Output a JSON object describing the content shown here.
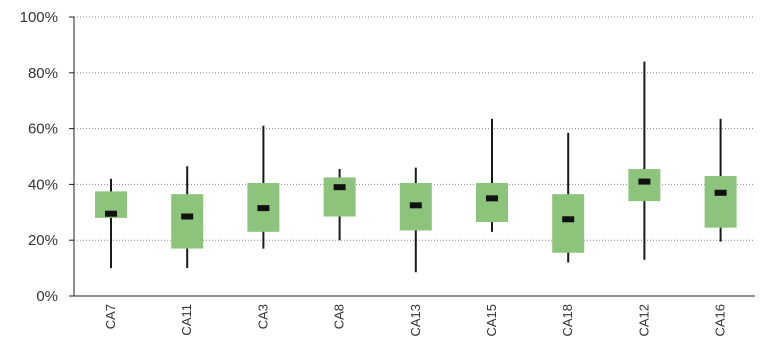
{
  "chart_data": {
    "type": "box",
    "title": "",
    "xlabel": "",
    "ylabel": "",
    "ylim": [
      0,
      100
    ],
    "y_ticks": [
      0,
      20,
      40,
      60,
      80,
      100
    ],
    "y_tick_labels": [
      "0%",
      "20%",
      "40%",
      "60%",
      "80%",
      "100%"
    ],
    "grid": "horizontal dotted",
    "colors": {
      "box": "#8cc47c",
      "whisker": "#1a1a1a",
      "median": "#111111",
      "grid": "#888888"
    },
    "categories": [
      "CA7",
      "CA11",
      "CA3",
      "CA8",
      "CA13",
      "CA15",
      "CA18",
      "CA12",
      "CA16"
    ],
    "series": [
      {
        "min": [
          10,
          10,
          17,
          20,
          8.5,
          23,
          12,
          13,
          19.5
        ],
        "q1": [
          28,
          17,
          23,
          28.5,
          23.5,
          26.5,
          15.5,
          34,
          24.5
        ],
        "median": [
          29.5,
          28.5,
          31.5,
          39,
          32.5,
          35,
          27.5,
          41,
          37
        ],
        "q3": [
          37.5,
          36.5,
          40.5,
          42.5,
          40.5,
          40.5,
          36.5,
          45.5,
          43
        ],
        "max": [
          42,
          46.5,
          61,
          45.5,
          46,
          63.5,
          58.5,
          84,
          63.5
        ]
      }
    ]
  }
}
